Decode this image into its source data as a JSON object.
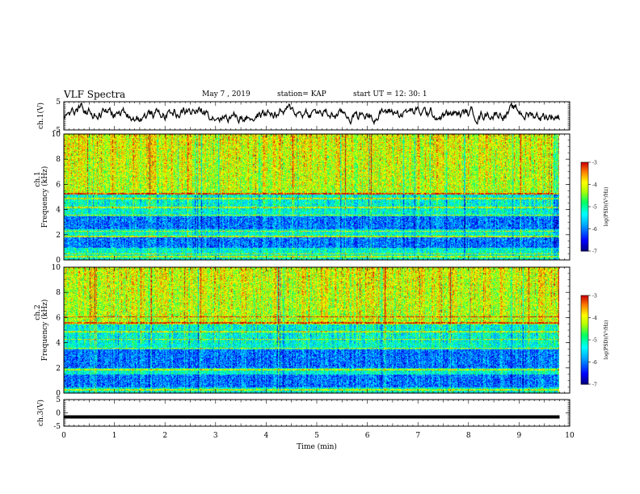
{
  "header": {
    "title": "VLF Spectra",
    "date": "May 7 , 2019",
    "station": "station= KAP",
    "start": "start UT = 12: 30: 1"
  },
  "chart_data": [
    {
      "type": "line",
      "name": "ch1-waveform",
      "ylabel": "ch.1(V)",
      "ylim": [
        -5,
        5
      ],
      "yticks": [
        "5",
        "-5"
      ],
      "xlim": [
        0,
        10
      ]
    },
    {
      "type": "heatmap",
      "name": "ch1-spectrogram",
      "ylabel_top": "ch.1",
      "ylabel": "Frequency (kHz)",
      "xlim": [
        0,
        10
      ],
      "ylim": [
        0,
        10
      ],
      "yticks": [
        "0",
        "2",
        "4",
        "6",
        "8",
        "10"
      ],
      "colorbar": {
        "label": "log(PSD)(V²/Hz)",
        "range": [
          -7,
          -3
        ],
        "ticks": [
          "-3",
          "-4",
          "-5",
          "-6",
          "-7"
        ]
      },
      "band_structure_kHz": {
        "high_power_above": 5.2,
        "low_power_bands": [
          [
            1.0,
            1.8
          ],
          [
            2.5,
            3.5
          ]
        ],
        "horizontal_lines": [
          0.3,
          0.5,
          1.9,
          2.3,
          3.6,
          4.2,
          4.9,
          5.3
        ]
      }
    },
    {
      "type": "heatmap",
      "name": "ch2-spectrogram",
      "ylabel_top": "ch.2",
      "ylabel": "Frequency (kHz)",
      "xlim": [
        0,
        10
      ],
      "ylim": [
        0,
        10
      ],
      "yticks": [
        "0",
        "2",
        "4",
        "6",
        "8",
        "10"
      ],
      "colorbar": {
        "label": "log(PSD)(V²/Hz)",
        "range": [
          -7,
          -3
        ],
        "ticks": [
          "-3",
          "-4",
          "-5",
          "-6",
          "-7"
        ]
      },
      "band_structure_kHz": {
        "high_power_above": 5.5,
        "low_power_bands": [
          [
            0.5,
            1.5
          ],
          [
            2.0,
            3.5
          ]
        ],
        "horizontal_lines": [
          0.3,
          1.9,
          3.6,
          4.3,
          4.9,
          5.6,
          6.1
        ]
      }
    },
    {
      "type": "line",
      "name": "ch3-waveform",
      "ylabel": "ch.3(V)",
      "ylim": [
        -5,
        5
      ],
      "yticks": [
        "5",
        "0",
        "-5"
      ],
      "xlim": [
        0,
        10
      ],
      "series": [
        {
          "x": [
            0,
            9.8
          ],
          "y": [
            -1.5,
            -1.5
          ]
        }
      ]
    }
  ],
  "xaxis": {
    "label": "Time (min)",
    "ticks": [
      "0",
      "1",
      "2",
      "3",
      "4",
      "5",
      "6",
      "7",
      "8",
      "9",
      "10"
    ],
    "range": [
      0,
      10
    ],
    "data_end": 9.8
  }
}
